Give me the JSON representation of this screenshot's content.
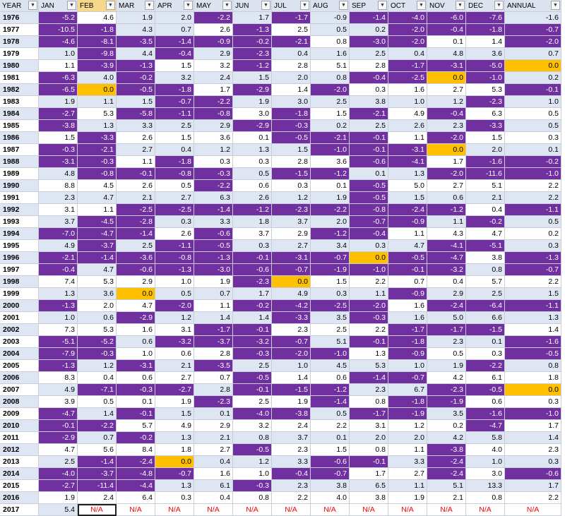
{
  "headers": [
    "YEAR",
    "JAN",
    "FEB",
    "MAR",
    "APR",
    "MAY",
    "JUN",
    "JUL",
    "AUG",
    "SEP",
    "OCT",
    "NOV",
    "DEC",
    "ANNUAL"
  ],
  "dropdown_glyph": "▼",
  "colors": {
    "purple": "#7030a0",
    "orange": "#ffc000",
    "light_blue": "#dfe6f3",
    "white": "#ffffff",
    "na_red": "#ff0000"
  },
  "rows": [
    {
      "year": "1976",
      "values": [
        "-5.2",
        "4.6",
        "1.9",
        "2.0",
        "-2.2",
        "1.7",
        "-1.7",
        "-0.9",
        "-1.4",
        "-4.0",
        "-6.0",
        "-7.6",
        "-1.6"
      ],
      "fills": "PWBBPBPBPPPPB"
    },
    {
      "year": "1977",
      "values": [
        "-10.5",
        "-1.8",
        "4.3",
        "0.7",
        "2.6",
        "-1.3",
        "2.5",
        "0.5",
        "0.2",
        "-2.0",
        "-0.4",
        "-1.8",
        "-0.7"
      ],
      "fills": "PPBBWPWBBPPPP"
    },
    {
      "year": "1978",
      "values": [
        "-4.6",
        "-8.1",
        "-3.5",
        "-1.4",
        "-0.9",
        "-0.2",
        "-2.1",
        "0.8",
        "-3.0",
        "-2.0",
        "0.1",
        "1.4",
        "-2.0"
      ],
      "fills": "PPPPPPPWPPWWP"
    },
    {
      "year": "1979",
      "values": [
        "1.0",
        "-9.8",
        "4.4",
        "-0.4",
        "2.9",
        "-2.3",
        "0.4",
        "1.6",
        "2.5",
        "0.4",
        "4.8",
        "3.6",
        "0.7"
      ],
      "fills": "BPBPBPBBBBBBB"
    },
    {
      "year": "1980",
      "values": [
        "1.1",
        "-3.9",
        "-1.3",
        "1.5",
        "3.2",
        "-1.2",
        "2.8",
        "5.1",
        "2.8",
        "-1.7",
        "-3.1",
        "-5.0",
        "0.0"
      ],
      "fills": "WPPWWPWWWPPPO"
    },
    {
      "year": "1981",
      "values": [
        "-6.3",
        "4.0",
        "-0.2",
        "3.2",
        "2.4",
        "1.5",
        "2.0",
        "0.8",
        "-0.4",
        "-2.5",
        "0.0",
        "-1.0",
        "0.2"
      ],
      "fills": "PBPBBBBBPPOPB"
    },
    {
      "year": "1982",
      "values": [
        "-6.5",
        "0.0",
        "-0.5",
        "-1.8",
        "1.7",
        "-2.9",
        "1.4",
        "-2.0",
        "0.3",
        "1.6",
        "2.7",
        "5.3",
        "-0.1"
      ],
      "fills": "POPPWPWPWWWWP"
    },
    {
      "year": "1983",
      "values": [
        "1.9",
        "1.1",
        "1.5",
        "-0.7",
        "-2.2",
        "1.9",
        "3.0",
        "2.5",
        "3.8",
        "1.0",
        "1.2",
        "-2.3",
        "1.0"
      ],
      "fills": "BBBPPBBBBBBPB"
    },
    {
      "year": "1984",
      "values": [
        "-2.7",
        "5.3",
        "-5.8",
        "-1.1",
        "-0.8",
        "3.0",
        "-1.8",
        "1.5",
        "-2.1",
        "4.9",
        "-0.4",
        "6.3",
        "0.5"
      ],
      "fills": "PWPPPWPWPWPWW"
    },
    {
      "year": "1985",
      "values": [
        "-3.8",
        "1.3",
        "3.3",
        "2.5",
        "2.9",
        "-2.9",
        "-0.3",
        "0.2",
        "2.5",
        "2.6",
        "2.3",
        "-3.3",
        "0.5"
      ],
      "fills": "PBBBBPPBBBBPB"
    },
    {
      "year": "1986",
      "values": [
        "1.5",
        "-3.3",
        "2.6",
        "1.5",
        "3.6",
        "0.1",
        "-0.5",
        "-2.1",
        "-0.1",
        "1.1",
        "-2.0",
        "1.5",
        "0.3"
      ],
      "fills": "WPWWWWPPPWPWW"
    },
    {
      "year": "1987",
      "values": [
        "-0.3",
        "-2.1",
        "2.7",
        "0.4",
        "1.2",
        "1.3",
        "1.5",
        "-1.0",
        "-0.1",
        "-3.1",
        "0.0",
        "2.0",
        "0.1"
      ],
      "fills": "PPBBBBBPPPOBB"
    },
    {
      "year": "1988",
      "values": [
        "-3.1",
        "-0.3",
        "1.1",
        "-1.8",
        "0.3",
        "0.3",
        "2.8",
        "3.6",
        "-0.6",
        "-4.1",
        "1.7",
        "-1.6",
        "-0.2"
      ],
      "fills": "PPWPWWWWPPWPP"
    },
    {
      "year": "1989",
      "values": [
        "4.8",
        "-0.8",
        "-0.1",
        "-0.8",
        "-0.3",
        "0.5",
        "-1.5",
        "-1.2",
        "0.1",
        "1.3",
        "-2.0",
        "-11.6",
        "-1.0"
      ],
      "fills": "BPPPPBPPBBPPP"
    },
    {
      "year": "1990",
      "values": [
        "8.8",
        "4.5",
        "2.6",
        "0.5",
        "-2.2",
        "0.6",
        "0.3",
        "0.1",
        "-0.5",
        "5.0",
        "2.7",
        "5.1",
        "2.2"
      ],
      "fills": "WWWWPWWWPWWWW"
    },
    {
      "year": "1991",
      "values": [
        "2.3",
        "4.7",
        "2.1",
        "2.7",
        "6.3",
        "2.6",
        "1.2",
        "1.9",
        "-0.5",
        "1.5",
        "0.6",
        "2.1",
        "2.2"
      ],
      "fills": "BBBBBBBBPBBBB"
    },
    {
      "year": "1992",
      "values": [
        "3.1",
        "1.1",
        "-2.5",
        "-2.5",
        "-1.4",
        "-1.2",
        "-2.3",
        "-2.2",
        "-0.8",
        "-2.4",
        "-1.2",
        "0.4",
        "-1.1"
      ],
      "fills": "WWPPPPPPPPPWP"
    },
    {
      "year": "1993",
      "values": [
        "3.7",
        "-4.5",
        "-2.8",
        "0.3",
        "3.3",
        "1.8",
        "3.7",
        "2.0",
        "-0.7",
        "-0.9",
        "1.1",
        "-0.2",
        "0.5"
      ],
      "fills": "BPPBBBBBPPBPB"
    },
    {
      "year": "1994",
      "values": [
        "-7.0",
        "-4.7",
        "-1.4",
        "2.6",
        "-0.6",
        "3.7",
        "2.9",
        "-1.2",
        "-0.4",
        "1.1",
        "4.3",
        "4.7",
        "0.2"
      ],
      "fills": "PPPWPWWPPWWWW"
    },
    {
      "year": "1995",
      "values": [
        "4.9",
        "-3.7",
        "2.5",
        "-1.1",
        "-0.5",
        "0.3",
        "2.7",
        "3.4",
        "0.3",
        "4.7",
        "-4.1",
        "-5.1",
        "0.3"
      ],
      "fills": "BPBPPBBBBBPPB"
    },
    {
      "year": "1996",
      "values": [
        "-2.1",
        "-1.4",
        "-3.6",
        "-0.8",
        "-1.3",
        "-0.1",
        "-3.1",
        "-0.7",
        "0.0",
        "-0.5",
        "-4.7",
        "3.8",
        "-1.3"
      ],
      "fills": "PPPPPPPPOPPWP"
    },
    {
      "year": "1997",
      "values": [
        "-0.4",
        "4.7",
        "-0.6",
        "-1.3",
        "-3.0",
        "-0.6",
        "-0.7",
        "-1.9",
        "-1.0",
        "-0.1",
        "-3.2",
        "0.8",
        "-0.7"
      ],
      "fills": "PBPPPPPPPPPBP"
    },
    {
      "year": "1998",
      "values": [
        "7.4",
        "5.3",
        "2.9",
        "1.0",
        "1.9",
        "-2.3",
        "0.0",
        "1.5",
        "2.2",
        "0.7",
        "0.4",
        "5.7",
        "2.2"
      ],
      "fills": "WWWWWPOWWWWWW"
    },
    {
      "year": "1999",
      "values": [
        "1.3",
        "3.6",
        "0.0",
        "0.5",
        "0.7",
        "1.7",
        "4.9",
        "0.3",
        "1.1",
        "-0.9",
        "2.9",
        "2.5",
        "1.5"
      ],
      "fills": "BBOBBBBBBPBBB"
    },
    {
      "year": "2000",
      "values": [
        "-1.3",
        "2.0",
        "4.7",
        "-2.0",
        "1.1",
        "-0.2",
        "-4.2",
        "-2.5",
        "-2.0",
        "1.6",
        "-2.4",
        "-6.4",
        "-1.1"
      ],
      "fills": "PWWPWPPPPWPPP"
    },
    {
      "year": "2001",
      "values": [
        "1.0",
        "0.6",
        "-2.9",
        "1.2",
        "1.4",
        "1.4",
        "-3.3",
        "3.5",
        "-0.3",
        "1.6",
        "5.0",
        "6.6",
        "1.3"
      ],
      "fills": "BBPBBBPBPBBBB"
    },
    {
      "year": "2002",
      "values": [
        "7.3",
        "5.3",
        "1.6",
        "3.1",
        "-1.7",
        "-0.1",
        "2.3",
        "2.5",
        "2.2",
        "-1.7",
        "-1.7",
        "-1.5",
        "1.4"
      ],
      "fills": "WWWWPPWWWPPPW"
    },
    {
      "year": "2003",
      "values": [
        "-5.1",
        "-5.2",
        "0.6",
        "-3.2",
        "-3.7",
        "-3.2",
        "-0.7",
        "5.1",
        "-0.1",
        "-1.8",
        "2.3",
        "0.1",
        "-1.6"
      ],
      "fills": "PPBPPPPBPPBBP"
    },
    {
      "year": "2004",
      "values": [
        "-7.9",
        "-0.3",
        "1.0",
        "0.6",
        "2.8",
        "-0.3",
        "-2.0",
        "-1.0",
        "1.3",
        "-0.9",
        "0.5",
        "0.3",
        "-0.5"
      ],
      "fills": "PPWWWPPPWPWWP"
    },
    {
      "year": "2005",
      "values": [
        "-1.3",
        "1.2",
        "-3.1",
        "2.1",
        "-3.5",
        "2.5",
        "1.0",
        "4.5",
        "5.3",
        "1.0",
        "1.9",
        "-2.2",
        "0.8"
      ],
      "fills": "PBPBPBBBBBBPB"
    },
    {
      "year": "2006",
      "values": [
        "8.3",
        "0.4",
        "0.6",
        "2.7",
        "0.7",
        "-0.5",
        "1.4",
        "0.6",
        "-1.4",
        "-0.7",
        "4.2",
        "6.1",
        "1.8"
      ],
      "fills": "WWWWWPWWPPWWW"
    },
    {
      "year": "2007",
      "values": [
        "4.9",
        "-7.1",
        "-0.3",
        "-2.7",
        "2.8",
        "-0.1",
        "-1.5",
        "-1.2",
        "2.3",
        "6.7",
        "-2.3",
        "-0.5",
        "0.0"
      ],
      "fills": "BPPPBPPPBBPPO"
    },
    {
      "year": "2008",
      "values": [
        "3.9",
        "0.5",
        "0.1",
        "1.9",
        "-2.3",
        "2.5",
        "1.9",
        "-1.4",
        "0.8",
        "-1.8",
        "-1.9",
        "0.6",
        "0.3"
      ],
      "fills": "WWWWPWWPWPPWW"
    },
    {
      "year": "2009",
      "values": [
        "-4.7",
        "1.4",
        "-0.1",
        "1.5",
        "0.1",
        "-4.0",
        "-3.8",
        "0.5",
        "-1.7",
        "-1.9",
        "3.5",
        "-1.6",
        "-1.0"
      ],
      "fills": "PBPBBPPBPPBPP"
    },
    {
      "year": "2010",
      "values": [
        "-0.1",
        "-2.2",
        "5.7",
        "4.9",
        "2.9",
        "3.2",
        "2.4",
        "2.2",
        "3.1",
        "1.2",
        "0.2",
        "-4.7",
        "1.7"
      ],
      "fills": "PPWWWWWWWWWPW"
    },
    {
      "year": "2011",
      "values": [
        "-2.9",
        "0.7",
        "-0.2",
        "1.3",
        "2.1",
        "0.8",
        "3.7",
        "0.1",
        "2.0",
        "2.0",
        "4.2",
        "5.8",
        "1.4"
      ],
      "fills": "PBPBBBBBBBBBB"
    },
    {
      "year": "2012",
      "values": [
        "4.7",
        "5.6",
        "8.4",
        "1.8",
        "2.7",
        "-0.5",
        "2.3",
        "1.5",
        "0.8",
        "1.1",
        "-3.8",
        "4.0",
        "2.3"
      ],
      "fills": "WWWWWPWWWWPWW"
    },
    {
      "year": "2013",
      "values": [
        "2.5",
        "-1.4",
        "-2.4",
        "0.0",
        "0.4",
        "1.2",
        "3.3",
        "-0.6",
        "-0.1",
        "3.3",
        "-2.4",
        "1.0",
        "0.3"
      ],
      "fills": "BPPOBBBPPBPBB"
    },
    {
      "year": "2014",
      "values": [
        "-4.0",
        "-3.7",
        "-4.8",
        "-0.7",
        "1.6",
        "1.0",
        "-0.4",
        "-0.7",
        "1.7",
        "2.7",
        "-2.4",
        "3.0",
        "-0.6"
      ],
      "fills": "PPPPWWPPWWPWP"
    },
    {
      "year": "2015",
      "values": [
        "-2.7",
        "-11.4",
        "-4.4",
        "1.3",
        "6.1",
        "-0.3",
        "2.3",
        "3.8",
        "6.5",
        "1.1",
        "5.1",
        "13.3",
        "1.7"
      ],
      "fills": "PPPBBPBBBBBBB"
    },
    {
      "year": "2016",
      "values": [
        "1.9",
        "2.4",
        "6.4",
        "0.3",
        "0.4",
        "0.8",
        "2.2",
        "4.0",
        "3.8",
        "1.9",
        "2.1",
        "0.8",
        "2.2"
      ],
      "fills": "WWWWWWWWWWWWW"
    },
    {
      "year": "2017",
      "values": [
        "5.4",
        "N/A",
        "N/A",
        "N/A",
        "N/A",
        "N/A",
        "N/A",
        "N/A",
        "N/A",
        "N/A",
        "N/A",
        "N/A",
        "N/A"
      ],
      "fills": "BWWWWWWWWWWWW"
    }
  ]
}
